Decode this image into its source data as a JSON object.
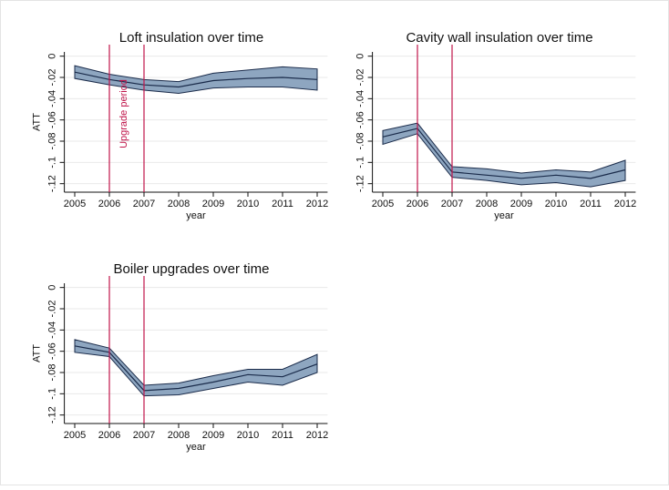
{
  "chart_data": [
    {
      "type": "line",
      "title": "Loft insulation over time",
      "xlabel": "year",
      "ylabel": "ATT",
      "x": [
        2005,
        2006,
        2007,
        2008,
        2009,
        2010,
        2011,
        2012
      ],
      "values": [
        -0.015,
        -0.022,
        -0.027,
        -0.029,
        -0.023,
        -0.021,
        -0.02,
        -0.022
      ],
      "ci_upper": [
        -0.009,
        -0.017,
        -0.022,
        -0.024,
        -0.016,
        -0.013,
        -0.01,
        -0.012
      ],
      "ci_lower": [
        -0.021,
        -0.027,
        -0.032,
        -0.035,
        -0.03,
        -0.029,
        -0.029,
        -0.032
      ],
      "line_color": "#1a2b4a",
      "band_color": "#8ea6c0",
      "vlines": [
        2006,
        2007
      ],
      "vline_color": "#c0144a",
      "annotation": "Upgrade period",
      "xlim": [
        2004.7,
        2012.3
      ],
      "xticks": [
        2005,
        2006,
        2007,
        2008,
        2009,
        2010,
        2011,
        2012
      ],
      "ylim": [
        -0.128,
        0.004
      ],
      "yticks": [
        {
          "value": -0.12,
          "label": "-.12"
        },
        {
          "value": -0.1,
          "label": "-.1"
        },
        {
          "value": -0.08,
          "label": "-.08"
        },
        {
          "value": -0.06,
          "label": "-.06"
        },
        {
          "value": -0.04,
          "label": "-.04"
        },
        {
          "value": -0.02,
          "label": "-.02"
        },
        0
      ],
      "grid": true
    },
    {
      "type": "line",
      "title": "Cavity wall insulation over time",
      "xlabel": "year",
      "x": [
        2005,
        2006,
        2007,
        2008,
        2009,
        2010,
        2011,
        2012
      ],
      "values": [
        -0.076,
        -0.068,
        -0.109,
        -0.112,
        -0.115,
        -0.112,
        -0.115,
        -0.107
      ],
      "ci_upper": [
        -0.07,
        -0.063,
        -0.104,
        -0.106,
        -0.11,
        -0.107,
        -0.109,
        -0.098
      ],
      "ci_lower": [
        -0.083,
        -0.073,
        -0.114,
        -0.117,
        -0.121,
        -0.119,
        -0.123,
        -0.117
      ],
      "line_color": "#1a2b4a",
      "band_color": "#8ea6c0",
      "vlines": [
        2006,
        2007
      ],
      "vline_color": "#c0144a",
      "xlim": [
        2004.7,
        2012.3
      ],
      "xticks": [
        2005,
        2006,
        2007,
        2008,
        2009,
        2010,
        2011,
        2012
      ],
      "ylim": [
        -0.128,
        0.004
      ],
      "yticks": [
        {
          "value": -0.12,
          "label": "-.12"
        },
        {
          "value": -0.1,
          "label": "-.1"
        },
        {
          "value": -0.08,
          "label": "-.08"
        },
        {
          "value": -0.06,
          "label": "-.06"
        },
        {
          "value": -0.04,
          "label": "-.04"
        },
        {
          "value": -0.02,
          "label": "-.02"
        },
        0
      ],
      "grid": true
    },
    {
      "type": "line",
      "title": "Boiler upgrades over time",
      "xlabel": "year",
      "ylabel": "ATT",
      "x": [
        2005,
        2006,
        2007,
        2008,
        2009,
        2010,
        2011,
        2012
      ],
      "values": [
        -0.055,
        -0.061,
        -0.097,
        -0.095,
        -0.089,
        -0.082,
        -0.084,
        -0.072
      ],
      "ci_upper": [
        -0.049,
        -0.057,
        -0.092,
        -0.09,
        -0.083,
        -0.077,
        -0.077,
        -0.063
      ],
      "ci_lower": [
        -0.061,
        -0.065,
        -0.102,
        -0.101,
        -0.095,
        -0.089,
        -0.092,
        -0.08
      ],
      "line_color": "#1a2b4a",
      "band_color": "#8ea6c0",
      "vlines": [
        2006,
        2007
      ],
      "vline_color": "#c0144a",
      "xlim": [
        2004.7,
        2012.3
      ],
      "xticks": [
        2005,
        2006,
        2007,
        2008,
        2009,
        2010,
        2011,
        2012
      ],
      "ylim": [
        -0.128,
        0.004
      ],
      "yticks": [
        {
          "value": -0.12,
          "label": "-.12"
        },
        {
          "value": -0.1,
          "label": "-.1"
        },
        {
          "value": -0.08,
          "label": "-.08"
        },
        {
          "value": -0.06,
          "label": "-.06"
        },
        {
          "value": -0.04,
          "label": "-.04"
        },
        {
          "value": -0.02,
          "label": "-.02"
        },
        0
      ],
      "grid": true
    }
  ]
}
